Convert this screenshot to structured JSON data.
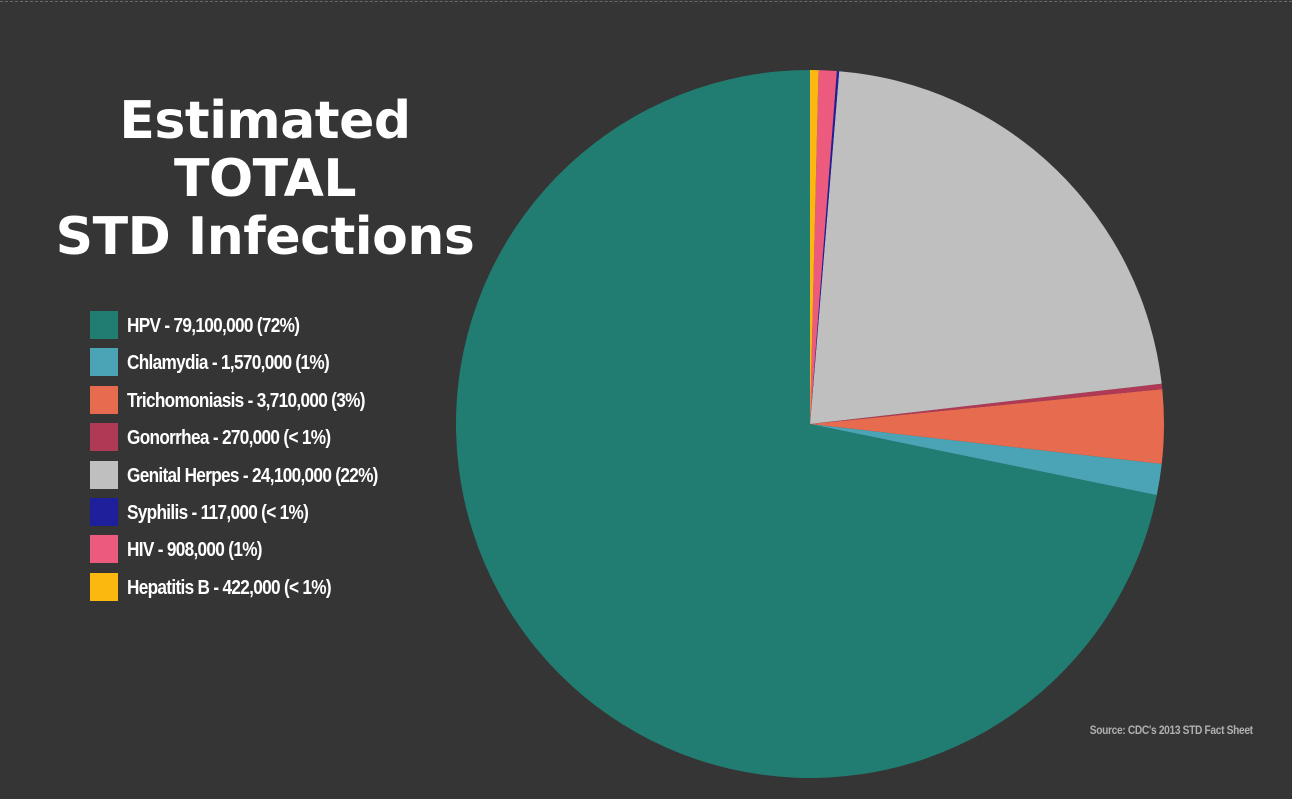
{
  "chart_data": {
    "type": "pie",
    "title": [
      "Estimated TOTAL",
      "STD Infections"
    ],
    "legend_position": "left",
    "slices": [
      {
        "label": "HPV - 79,100,000 (72%)",
        "name": "HPV",
        "value": 79100000,
        "color": "#217d72"
      },
      {
        "label": "Chlamydia - 1,570,000 (1%)",
        "name": "Chlamydia",
        "value": 1570000,
        "color": "#4ba3b6"
      },
      {
        "label": "Trichomoniasis - 3,710,000 (3%)",
        "name": "Trichomoniasis",
        "value": 3710000,
        "color": "#e76b4f"
      },
      {
        "label": "Gonorrhea - 270,000 (< 1%)",
        "name": "Gonorrhea",
        "value": 270000,
        "color": "#b03a56"
      },
      {
        "label": "Genital Herpes - 24,100,000 (22%)",
        "name": "Genital Herpes",
        "value": 24100000,
        "color": "#bfbfbf"
      },
      {
        "label": "Syphilis - 117,000 (< 1%)",
        "name": "Syphilis",
        "value": 117000,
        "color": "#1f1f9c"
      },
      {
        "label": "HIV - 908,000 (1%)",
        "name": "HIV",
        "value": 908000,
        "color": "#ec5a7e"
      },
      {
        "label": "Hepatitis B - 422,000 (< 1%)",
        "name": "Hepatitis B",
        "value": 422000,
        "color": "#fbb80e"
      }
    ],
    "source": "Source: CDC's 2013 STD Fact Sheet"
  }
}
